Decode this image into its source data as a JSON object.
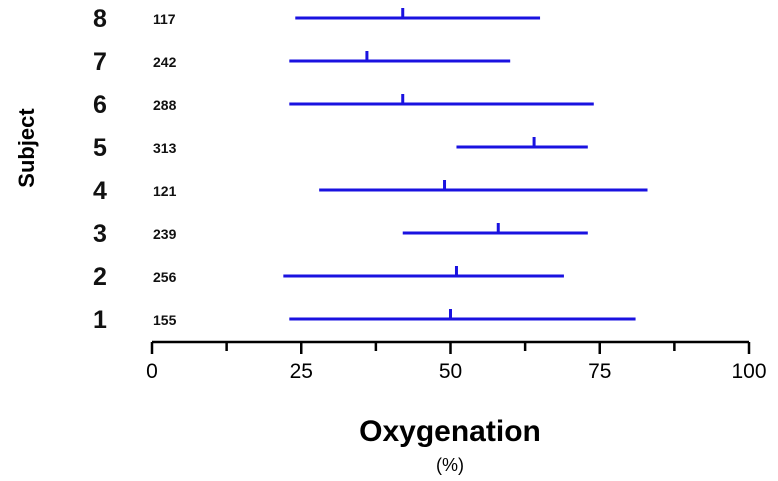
{
  "chart_data": {
    "type": "interval",
    "title": "",
    "xlabel": "Oxygenation",
    "xunit": "(%)",
    "ylabel": "Subject",
    "xlim": [
      0,
      100
    ],
    "x_ticks": [
      "0",
      "25",
      "50",
      "75",
      "100"
    ],
    "x_minor_step": 12.5,
    "grid": false,
    "line_color": "#1a12e0",
    "subjects": [
      {
        "subject": "1",
        "n": "155",
        "low": 23,
        "median": 50,
        "high": 81
      },
      {
        "subject": "2",
        "n": "256",
        "low": 22,
        "median": 51,
        "high": 69
      },
      {
        "subject": "3",
        "n": "239",
        "low": 42,
        "median": 58,
        "high": 73
      },
      {
        "subject": "4",
        "n": "121",
        "low": 28,
        "median": 49,
        "high": 83
      },
      {
        "subject": "5",
        "n": "313",
        "low": 51,
        "median": 64,
        "high": 73
      },
      {
        "subject": "6",
        "n": "288",
        "low": 23,
        "median": 42,
        "high": 74
      },
      {
        "subject": "7",
        "n": "242",
        "low": 23,
        "median": 36,
        "high": 60
      },
      {
        "subject": "8",
        "n": "117",
        "low": 24,
        "median": 42,
        "high": 65
      }
    ]
  }
}
